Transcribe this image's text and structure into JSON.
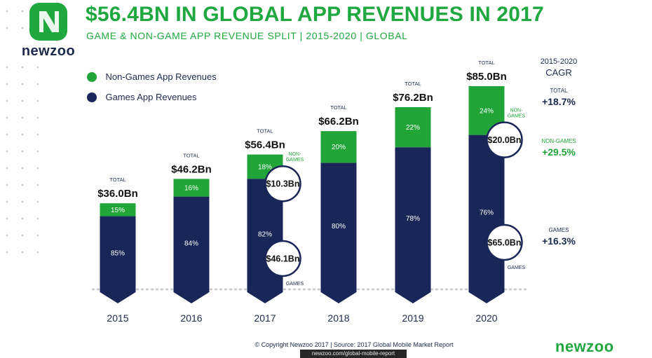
{
  "brand": {
    "name": "newzoo"
  },
  "title": "$56.4BN IN GLOBAL APP REVENUES IN 2017",
  "subtitle": "GAME & NON-GAME APP REVENUE SPLIT | 2015-2020 | GLOBAL",
  "legend": {
    "non_games": "Non-Games App Revenues",
    "games": "Games App Revenues"
  },
  "total_caption": "TOTAL",
  "callout_labels": {
    "non_games": "NON-GAMES",
    "games": "GAMES"
  },
  "cagr": {
    "header_line1": "2015-2020",
    "header_line2": "CAGR",
    "total_label": "TOTAL",
    "total_value": "+18.7%",
    "non_games_label": "NON-GAMES",
    "non_games_value": "+29.5%",
    "games_label": "GAMES",
    "games_value": "+16.3%"
  },
  "colors": {
    "games": "#192657",
    "non_games": "#21a538",
    "title": "#1fa83f",
    "dark_text": "#1c2a4c"
  },
  "footer": {
    "copyright": "© Copyright Newzoo 2017 | Source: 2017 Global Mobile Market Report",
    "url": "newzoo.com/global-mobile-report"
  },
  "chart_data": {
    "type": "bar",
    "stacked": true,
    "categories": [
      "2015",
      "2016",
      "2017",
      "2018",
      "2019",
      "2020"
    ],
    "totals": [
      36.0,
      46.2,
      56.4,
      66.2,
      76.2,
      85.0
    ],
    "total_labels": [
      "$36.0Bn",
      "$46.2Bn",
      "$56.4Bn",
      "$66.2Bn",
      "$76.2Bn",
      "$85.0Bn"
    ],
    "series": [
      {
        "name": "Games App Revenues",
        "share_percent": [
          85,
          84,
          82,
          80,
          78,
          76
        ],
        "share_labels": [
          "85%",
          "84%",
          "82%",
          "80%",
          "78%",
          "76%"
        ]
      },
      {
        "name": "Non-Games App Revenues",
        "share_percent": [
          15,
          16,
          18,
          20,
          22,
          24
        ],
        "share_labels": [
          "15%",
          "16%",
          "18%",
          "20%",
          "22%",
          "24%"
        ]
      }
    ],
    "callouts": [
      {
        "year": "2017",
        "series": "Non-Games App Revenues",
        "label": "$10.3Bn"
      },
      {
        "year": "2017",
        "series": "Games App Revenues",
        "label": "$46.1Bn"
      },
      {
        "year": "2020",
        "series": "Non-Games App Revenues",
        "label": "$20.0Bn"
      },
      {
        "year": "2020",
        "series": "Games App Revenues",
        "label": "$65.0Bn"
      }
    ],
    "ylim": [
      0,
      85
    ],
    "xlabel": "",
    "ylabel": "",
    "legend_position": "top-left",
    "grid": false
  }
}
